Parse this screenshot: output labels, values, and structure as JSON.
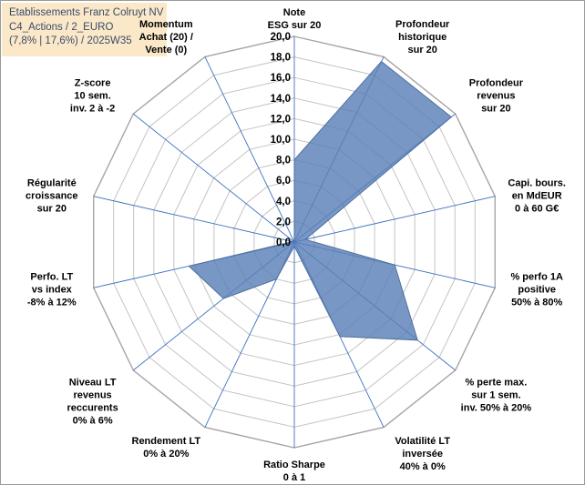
{
  "header": {
    "title_line1": "Etablissements Franz Colruyt NV",
    "title_line2": "C4_Actions / 2_EURO",
    "title_line3": "(7,8% | 17,6%) / 2025W35"
  },
  "chart_data": {
    "type": "radar",
    "title": "",
    "rmin": 0,
    "rmax": 20,
    "r_ticks": [
      "0,0",
      "2,0",
      "4,0",
      "6,0",
      "8,0",
      "10,0",
      "12,0",
      "14,0",
      "16,0",
      "18,0",
      "20,0"
    ],
    "axes": [
      [
        "Note",
        "ESG sur 20"
      ],
      [
        "Profondeur",
        "historique",
        "sur 20"
      ],
      [
        "Profondeur",
        "revenus",
        "sur 20"
      ],
      [
        "Capi. bours.",
        "en MdEUR",
        "0 à 60 G€"
      ],
      [
        "% perfo 1A",
        "positive",
        "50% à 80%"
      ],
      [
        "% perte max.",
        "sur 1 sem.",
        "inv. 50% à 20%"
      ],
      [
        "Volatilité LT",
        "inversée",
        "40% à 0%"
      ],
      [
        "Ratio Sharpe",
        "0 à 1"
      ],
      [
        "Rendement LT",
        "0% à 20%"
      ],
      [
        "Niveau LT",
        "revenus",
        "reccurents",
        "0% à 6%"
      ],
      [
        "Perfo. LT",
        "vs index",
        "-8% à 12%"
      ],
      [
        "Régularité",
        "croissance",
        "sur 20"
      ],
      [
        "Z-score",
        "10 sem.",
        "inv. 2 à -2"
      ],
      [
        "Momentum",
        "Achat (20) /",
        "Vente (0)"
      ]
    ],
    "series": [
      {
        "values": [
          8.0,
          19.5,
          19.5,
          1.1,
          10.0,
          15.3,
          10.2,
          0.4,
          4.0,
          8.8,
          10.5,
          0.2,
          0.0,
          0.0
        ],
        "color": "#5a80b8"
      }
    ],
    "grid": true
  }
}
